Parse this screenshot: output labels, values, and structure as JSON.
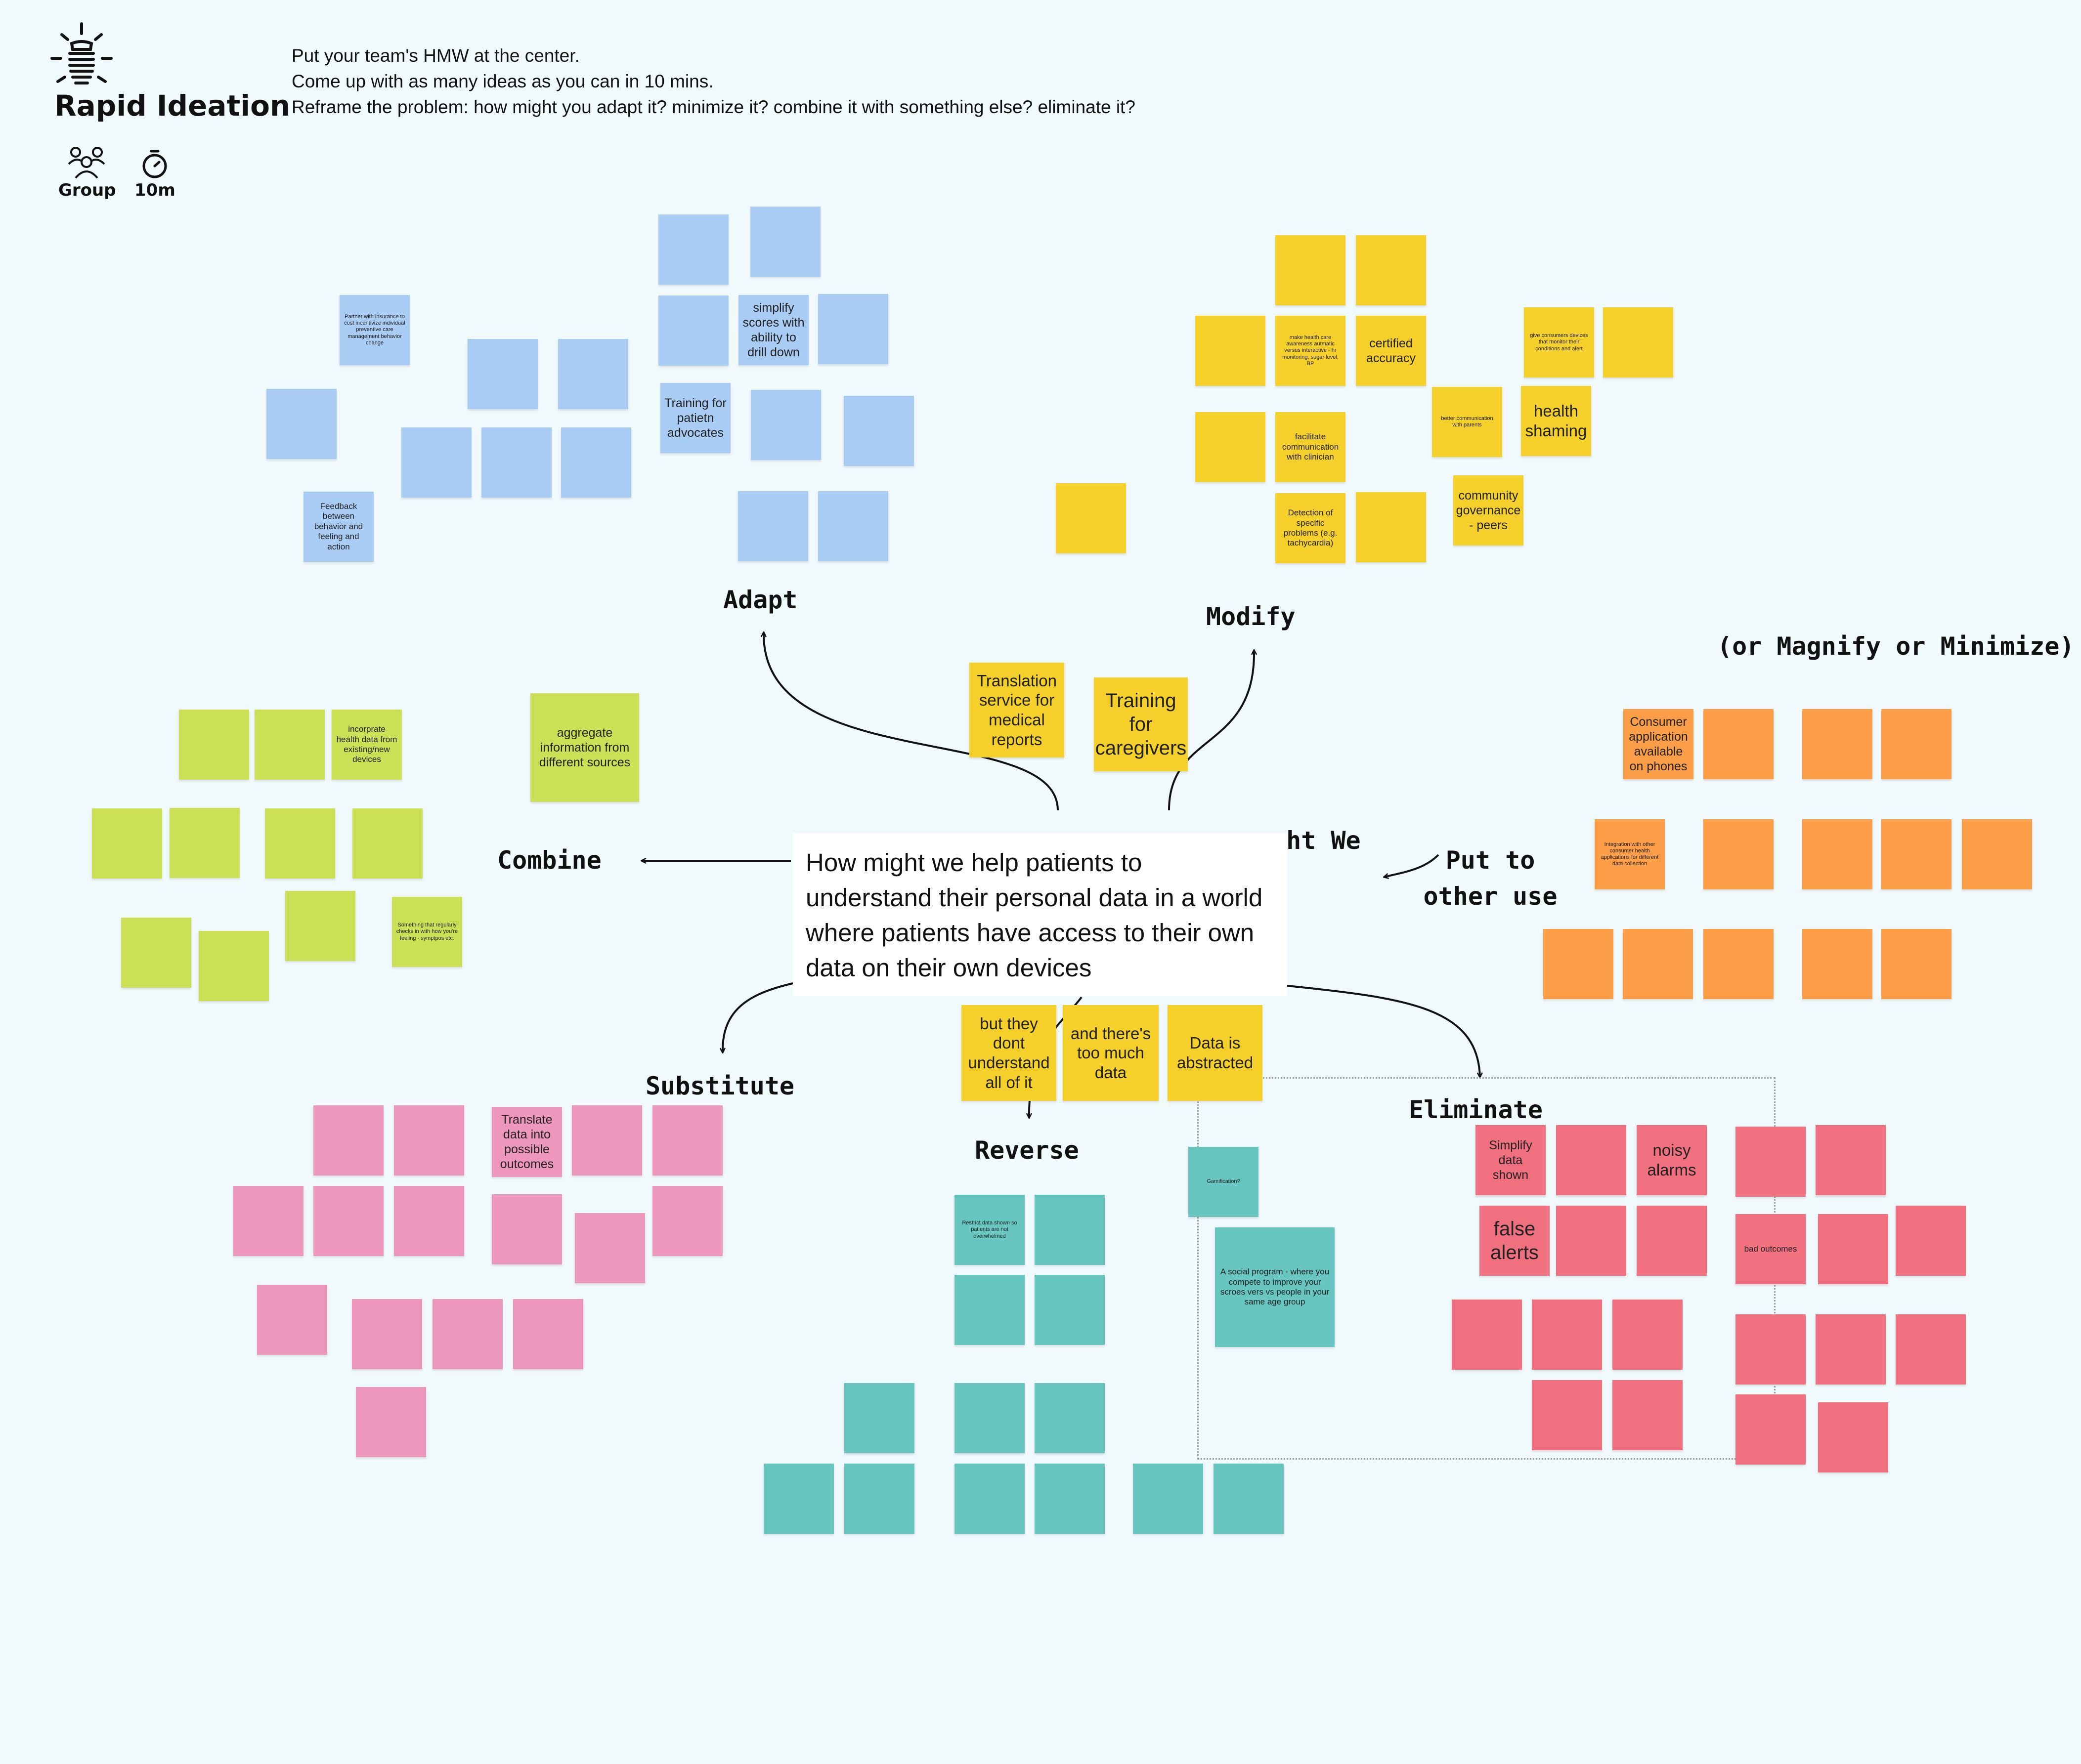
{
  "header": {
    "title": "Rapid Ideation",
    "instructions": [
      "Put your team's HMW at the center.",
      "Come up with as many ideas as you can in 10 mins.",
      "Reframe the problem: how might you adapt it? minimize it? combine it with something else? eliminate it?"
    ],
    "group_icon": "group-icon",
    "group_label": "Group",
    "timer_icon": "timer-icon",
    "timer_label": "10m",
    "logo_icon": "lightbulb-icon"
  },
  "colors": {
    "background": "#f0f9fc",
    "blue": "#a9ccf4",
    "yellow": "#f5d02a",
    "green": "#cbe055",
    "orange": "#fc9d48",
    "pink": "#ee97bc",
    "teal": "#67c7c0",
    "red": "#f0707f"
  },
  "hmw": {
    "text": "How might we help patients to understand their personal data in a world where patients have access to their own data on their own devices",
    "partial_label": "ght We"
  },
  "categories": {
    "adapt": "Adapt",
    "modify": "Modify",
    "modify_sub": "(or Magnify or Minimize)",
    "combine": "Combine",
    "put_to_other_use_1": "Put to",
    "put_to_other_use_2": "other use",
    "substitute": "Substitute",
    "reverse": "Reverse",
    "eliminate": "Eliminate"
  },
  "notes": {
    "adapt": {
      "insurance": "Partner with insurance to cost incentivize individual preventive care management behavior change",
      "simplify": "simplify scores with ability to drill down",
      "training": "Training for patietn advocates",
      "feedback": "Feedback between behavior and feeling and action"
    },
    "modify": {
      "awareness": "make health care awareness autmatic versus interactive - hr monitoring, sugar level, BP",
      "certified": "certified accuracy",
      "give_devices": "give consumers devices that monitor their conditions and alert",
      "better_comm": "better communication with parents",
      "shaming": "health shaming",
      "facilitate": "facilitate communication with clinician",
      "detection": "Detection of specific problems (e.g. tachycardia)",
      "governance": "community governance - peers"
    },
    "center": {
      "translation": "Translation service for medical reports",
      "caregivers": "Training for caregivers",
      "dont_understand": "but they dont understand all of it",
      "too_much": "and there's too much data",
      "abstracted": "Data is abstracted"
    },
    "combine": {
      "incorporate": "incorprate health data from existing/new devices",
      "aggregate": "aggregate information from different sources",
      "checks": "Something that regularly checks in with how you're feeling - symptpos etc."
    },
    "other_use": {
      "consumer_app": "Consumer application available on phones",
      "integration": "Integration with other consumer health applications for different data collection"
    },
    "substitute": {
      "translate": "Translate data into possible outcomes"
    },
    "reverse": {
      "restrict": "Restrict data shown so patients are not overwhelmed",
      "gamification": "Gamification?",
      "social": "A social program - where you compete to improve your scroes vers vs people in your same age group"
    },
    "eliminate": {
      "simplify": "Simplify data shown",
      "noisy": "noisy alarms",
      "false": "false alerts",
      "bad": "bad outcomes"
    }
  }
}
